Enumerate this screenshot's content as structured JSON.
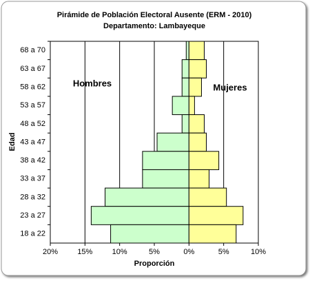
{
  "chart_data": {
    "type": "pyramid",
    "title": "Pirámide de Población  Electoral Ausente (ERM - 2010)",
    "subtitle": "Departamento: Lambayeque",
    "x_label": "Proporción",
    "y_label": "Edad",
    "annotations": [
      "Hombres",
      "Mujeres"
    ],
    "categories": [
      "68 a 70",
      "63 a 67",
      "58 a 62",
      "53 a 57",
      "48 a 52",
      "43 a 47",
      "38 a 42",
      "33 a 37",
      "28 a 32",
      "23 a 27",
      "18 a 22"
    ],
    "series": [
      {
        "name": "Hombres",
        "color": "#ccffcc",
        "values": [
          -0.4,
          -1.0,
          -1.0,
          -2.4,
          -1.0,
          -4.6,
          -6.7,
          -6.7,
          -12.1,
          -14.1,
          -11.3
        ]
      },
      {
        "name": "Mujeres",
        "color": "#ffff99",
        "values": [
          2.2,
          2.5,
          1.8,
          0.8,
          2.2,
          2.5,
          4.3,
          2.9,
          5.4,
          7.8,
          6.8
        ]
      }
    ],
    "xlim": [
      -20,
      10
    ],
    "xticks": [
      {
        "value": -20,
        "label": "20%"
      },
      {
        "value": -15,
        "label": "15%"
      },
      {
        "value": -10,
        "label": "10%"
      },
      {
        "value": -5,
        "label": "5%"
      },
      {
        "value": 0,
        "label": "0%"
      },
      {
        "value": 5,
        "label": "5%"
      },
      {
        "value": 10,
        "label": "10%"
      }
    ],
    "grid": true
  }
}
